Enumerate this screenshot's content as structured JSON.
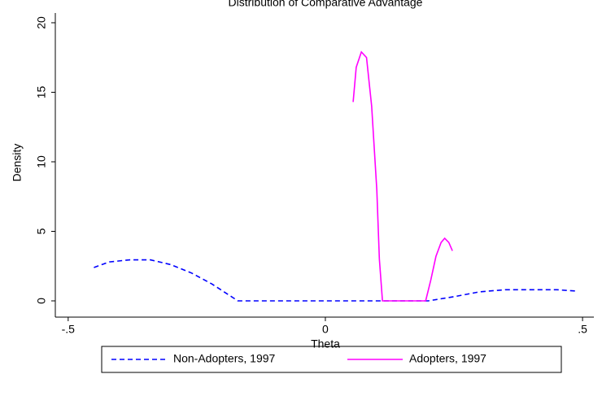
{
  "chart_data": {
    "type": "line",
    "title": "Distribution of Comparative Advantage",
    "x_label": "Theta",
    "y_label": "Density",
    "xlim": [
      -0.525,
      0.522
    ],
    "ylim": [
      -1.17,
      20.7
    ],
    "xticks": [
      {
        "value": -0.5,
        "label": "-.5"
      },
      0,
      {
        "value": 0.5,
        "label": ".5"
      }
    ],
    "yticks": [
      0,
      5,
      10,
      15,
      20
    ],
    "series": [
      {
        "name": "Non-Adopters, 1997",
        "color": "#0000ff",
        "dash": true,
        "x": [
          -0.45,
          -0.42,
          -0.38,
          -0.34,
          -0.3,
          -0.26,
          -0.22,
          -0.17,
          0.2,
          0.25,
          0.3,
          0.35,
          0.45,
          0.49
        ],
        "values": [
          2.4,
          2.8,
          2.95,
          2.95,
          2.6,
          2.0,
          1.2,
          0,
          0,
          0.3,
          0.65,
          0.8,
          0.8,
          0.7
        ]
      },
      {
        "name": "Adopters, 1997",
        "color": "#ff00ff",
        "dash": false,
        "x": [
          0.054,
          0.06,
          0.07,
          0.08,
          0.09,
          0.1,
          0.105,
          0.111,
          0.195,
          0.205,
          0.215,
          0.225,
          0.232,
          0.24,
          0.247
        ],
        "values": [
          14.3,
          16.8,
          17.9,
          17.5,
          14,
          8,
          3,
          0,
          0,
          1.5,
          3.2,
          4.2,
          4.5,
          4.2,
          3.6
        ]
      }
    ]
  }
}
